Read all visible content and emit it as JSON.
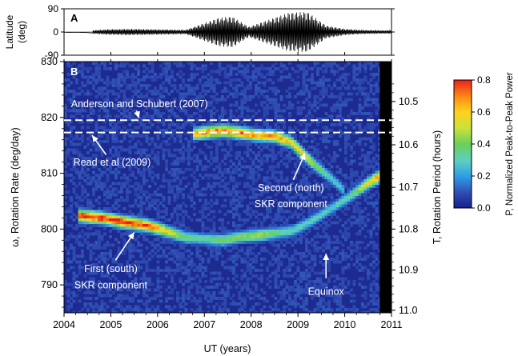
{
  "chart_data": [
    {
      "type": "line",
      "panel_label": "A",
      "ylabel": "Latitude",
      "ylabel_unit": "(deg)",
      "ylim": [
        -90,
        90
      ],
      "yticks": [
        90,
        0,
        -90
      ],
      "xlim": [
        2004,
        2011
      ],
      "description_series": [
        {
          "x": [
            2004.0,
            2004.45,
            2004.6,
            2004.9,
            2005.4,
            2006.0,
            2006.6,
            2007.3,
            2007.6,
            2007.95,
            2008.8,
            2009.2,
            2009.6,
            2010.0,
            2010.3,
            2010.7
          ],
          "amplitude_deg": [
            2,
            3,
            6,
            10,
            12,
            10,
            8,
            55,
            60,
            20,
            75,
            78,
            25,
            12,
            8,
            6
          ]
        }
      ]
    },
    {
      "type": "heatmap",
      "panel_label": "B",
      "xlabel": "UT (years)",
      "xlim": [
        2004,
        2011
      ],
      "xticks": [
        "2004",
        "2005",
        "2006",
        "2007",
        "2008",
        "2009",
        "2010",
        "2011"
      ],
      "ylabel": "ω, Rotation Rate (deg/day)",
      "ylim": [
        785,
        830
      ],
      "yticks": [
        "790",
        "800",
        "810",
        "820",
        "830"
      ],
      "y2label": "T, Rotation Period (hours)",
      "y2ticks": [
        "10.5",
        "10.6",
        "10.7",
        "10.8",
        "10.9",
        "11.0"
      ],
      "colorbar": {
        "label": "P, Normalized Peak-to-Peak Power",
        "range": [
          0.0,
          0.8
        ],
        "ticks": [
          "0.0",
          "0.2",
          "0.4",
          "0.6",
          "0.8"
        ]
      },
      "no_data_after": 2010.75,
      "reference_lines": [
        {
          "label": "Anderson and Schubert (2007)",
          "rate": 819.5
        },
        {
          "label": "Read et al (2009)",
          "rate": 817.3
        }
      ],
      "ridges": [
        {
          "name": "First (south) SKR component",
          "points": [
            [
              2004.3,
              802.4
            ],
            [
              2004.8,
              802.0
            ],
            [
              2005.3,
              801.2
            ],
            [
              2005.8,
              800.6
            ],
            [
              2006.2,
              799.6
            ],
            [
              2006.6,
              798.5
            ],
            [
              2007.0,
              798.2
            ],
            [
              2007.4,
              798.0
            ],
            [
              2007.8,
              798.6
            ],
            [
              2008.2,
              798.9
            ],
            [
              2008.6,
              799.3
            ],
            [
              2008.9,
              799.7
            ],
            [
              2009.3,
              801.5
            ],
            [
              2009.7,
              803.6
            ],
            [
              2010.1,
              805.8
            ],
            [
              2010.5,
              808.2
            ],
            [
              2010.75,
              809.4
            ]
          ],
          "power": [
            0.78,
            0.8,
            0.8,
            0.76,
            0.55,
            0.38,
            0.32,
            0.4,
            0.42,
            0.46,
            0.35,
            0.32,
            0.3,
            0.28,
            0.32,
            0.55,
            0.7
          ]
        },
        {
          "name": "Second (north) SKR component",
          "points": [
            [
              2006.75,
              817.0
            ],
            [
              2007.0,
              817.3
            ],
            [
              2007.4,
              817.6
            ],
            [
              2007.8,
              817.2
            ],
            [
              2008.1,
              816.8
            ],
            [
              2008.5,
              816.6
            ],
            [
              2008.85,
              815.6
            ],
            [
              2009.1,
              813.5
            ],
            [
              2009.4,
              811.2
            ],
            [
              2009.7,
              809.2
            ],
            [
              2010.0,
              806.8
            ]
          ],
          "power": [
            0.62,
            0.72,
            0.7,
            0.72,
            0.66,
            0.68,
            0.58,
            0.6,
            0.42,
            0.3,
            0.25
          ]
        }
      ],
      "annotations": [
        {
          "text": "Anderson and Schubert (2007)"
        },
        {
          "text": "Read et al (2009)"
        },
        {
          "text": "Second (north)",
          "text2": "SKR component"
        },
        {
          "text": "First (south)",
          "text2": "SKR component"
        },
        {
          "text": "Equinox"
        }
      ]
    }
  ]
}
